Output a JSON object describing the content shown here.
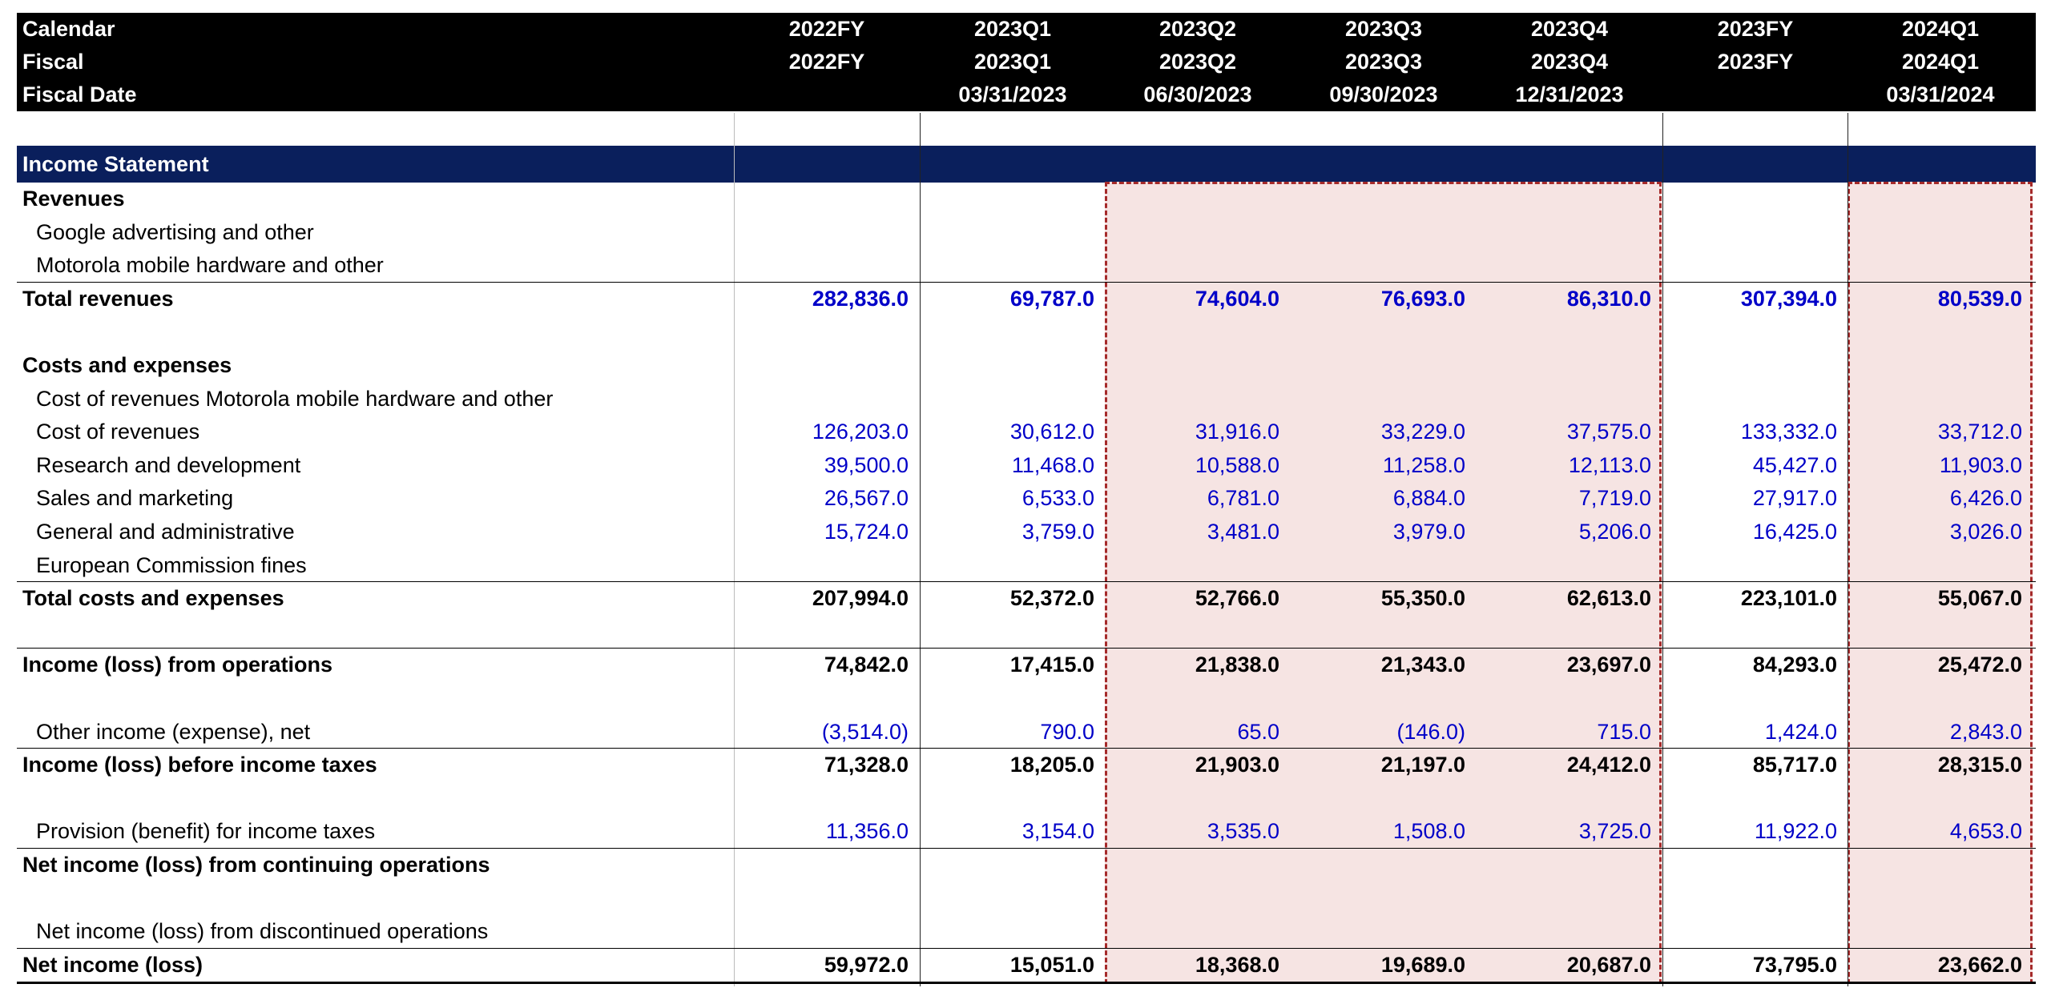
{
  "header": {
    "row_labels": [
      "Calendar",
      "Fiscal",
      "Fiscal Date"
    ],
    "columns": [
      {
        "calendar": "2022FY",
        "fiscal": "2022FY",
        "date": ""
      },
      {
        "calendar": "2023Q1",
        "fiscal": "2023Q1",
        "date": "03/31/2023"
      },
      {
        "calendar": "2023Q2",
        "fiscal": "2023Q2",
        "date": "06/30/2023"
      },
      {
        "calendar": "2023Q3",
        "fiscal": "2023Q3",
        "date": "09/30/2023"
      },
      {
        "calendar": "2023Q4",
        "fiscal": "2023Q4",
        "date": "12/31/2023"
      },
      {
        "calendar": "2023FY",
        "fiscal": "2023FY",
        "date": ""
      },
      {
        "calendar": "2024Q1",
        "fiscal": "2024Q1",
        "date": "03/31/2024"
      }
    ]
  },
  "section_title": "Income Statement",
  "rows": [
    {
      "label": "Revenues",
      "bold": true,
      "values": []
    },
    {
      "label": "Google advertising and other",
      "values": []
    },
    {
      "label": "Motorola mobile hardware and other",
      "values": []
    },
    {
      "label": "Total revenues",
      "bold": true,
      "blue": true,
      "values": [
        "282,836.0",
        "69,787.0",
        "74,604.0",
        "76,693.0",
        "86,310.0",
        "307,394.0",
        "80,539.0"
      ]
    },
    {
      "label": "",
      "values": []
    },
    {
      "label": "Costs and expenses",
      "bold": true,
      "values": []
    },
    {
      "label": "Cost of revenues Motorola mobile hardware and other",
      "values": []
    },
    {
      "label": "Cost of revenues",
      "blue": true,
      "values": [
        "126,203.0",
        "30,612.0",
        "31,916.0",
        "33,229.0",
        "37,575.0",
        "133,332.0",
        "33,712.0"
      ]
    },
    {
      "label": "Research and development",
      "blue": true,
      "values": [
        "39,500.0",
        "11,468.0",
        "10,588.0",
        "11,258.0",
        "12,113.0",
        "45,427.0",
        "11,903.0"
      ]
    },
    {
      "label": "Sales and marketing",
      "blue": true,
      "values": [
        "26,567.0",
        "6,533.0",
        "6,781.0",
        "6,884.0",
        "7,719.0",
        "27,917.0",
        "6,426.0"
      ]
    },
    {
      "label": "General and administrative",
      "blue": true,
      "values": [
        "15,724.0",
        "3,759.0",
        "3,481.0",
        "3,979.0",
        "5,206.0",
        "16,425.0",
        "3,026.0"
      ]
    },
    {
      "label": "European Commission fines",
      "values": []
    },
    {
      "label": "Total costs and expenses",
      "bold": true,
      "values": [
        "207,994.0",
        "52,372.0",
        "52,766.0",
        "55,350.0",
        "62,613.0",
        "223,101.0",
        "55,067.0"
      ]
    },
    {
      "label": "",
      "values": []
    },
    {
      "label": "Income (loss) from operations",
      "bold": true,
      "values": [
        "74,842.0",
        "17,415.0",
        "21,838.0",
        "21,343.0",
        "23,697.0",
        "84,293.0",
        "25,472.0"
      ]
    },
    {
      "label": "",
      "values": []
    },
    {
      "label": "Other income (expense), net",
      "blue": true,
      "values": [
        "(3,514.0)",
        "790.0",
        "65.0",
        "(146.0)",
        "715.0",
        "1,424.0",
        "2,843.0"
      ]
    },
    {
      "label": "Income (loss) before income taxes",
      "bold": true,
      "values": [
        "71,328.0",
        "18,205.0",
        "21,903.0",
        "21,197.0",
        "24,412.0",
        "85,717.0",
        "28,315.0"
      ]
    },
    {
      "label": "",
      "values": []
    },
    {
      "label": "Provision (benefit) for income taxes",
      "blue": true,
      "values": [
        "11,356.0",
        "3,154.0",
        "3,535.0",
        "1,508.0",
        "3,725.0",
        "11,922.0",
        "4,653.0"
      ]
    },
    {
      "label": "Net income (loss) from continuing operations",
      "bold": true,
      "values": []
    },
    {
      "label": "",
      "values": []
    },
    {
      "label": "Net income (loss) from discontinued operations",
      "values": []
    },
    {
      "label": "Net income (loss)",
      "bold": true,
      "values": [
        "59,972.0",
        "15,051.0",
        "18,368.0",
        "19,689.0",
        "20,687.0",
        "73,795.0",
        "23,662.0"
      ]
    }
  ]
}
